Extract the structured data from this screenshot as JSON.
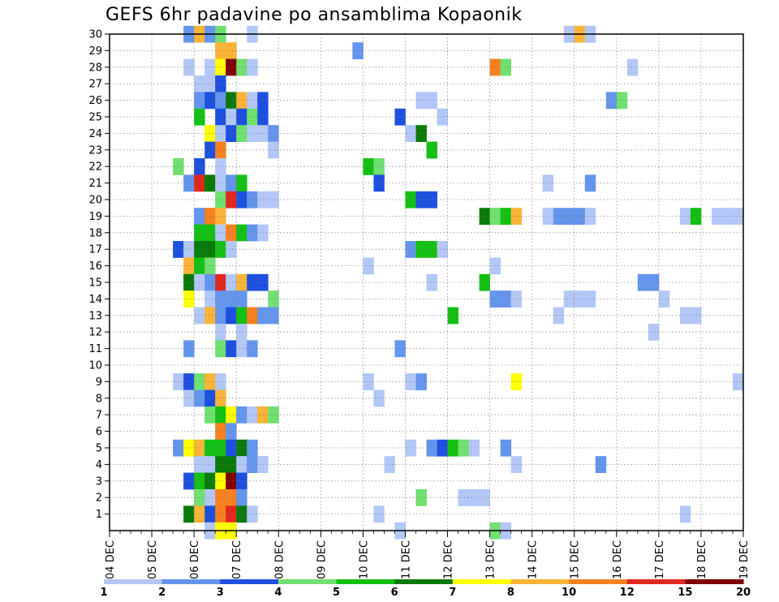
{
  "title": "GEFS 6hr padavine po ansamblima Kopaonik",
  "chart_data": {
    "type": "heatmap",
    "title": "GEFS 6hr padavine po ansamblima Kopaonik",
    "xlabel": "",
    "ylabel": "",
    "x_tick_labels": [
      "04 DEC",
      "05 DEC",
      "06 DEC",
      "07 DEC",
      "08 DEC",
      "09 DEC",
      "10 DEC",
      "11 DEC",
      "12 DEC",
      "13 DEC",
      "14 DEC",
      "15 DEC",
      "16 DEC",
      "17 DEC",
      "18 DEC",
      "19 DEC"
    ],
    "y_tick_labels": [
      "1",
      "2",
      "3",
      "4",
      "5",
      "6",
      "7",
      "8",
      "9",
      "10",
      "11",
      "12",
      "13",
      "14",
      "15",
      "16",
      "17",
      "18",
      "19",
      "20",
      "21",
      "22",
      "23",
      "24",
      "25",
      "26",
      "27",
      "28",
      "29",
      "30"
    ],
    "colorbar": {
      "labels": [
        "1",
        "2",
        "3",
        "4",
        "5",
        "6",
        "7",
        "8",
        "10",
        "12",
        "15",
        "20"
      ],
      "colors": [
        "#b3c7f7",
        "#6495ed",
        "#1e50e0",
        "#70e070",
        "#14c014",
        "#0a7a0a",
        "#ffff00",
        "#fbb437",
        "#f78020",
        "#e0281e",
        "#800000"
      ]
    },
    "grid": true,
    "cells": [
      {
        "m": 30,
        "x": "05 DEC 18Z",
        "c": 2
      },
      {
        "m": 30,
        "x": "06 DEC 00Z",
        "c": 8
      },
      {
        "m": 30,
        "x": "06 DEC 06Z",
        "c": 2
      },
      {
        "m": 30,
        "x": "06 DEC 12Z",
        "c": 4
      },
      {
        "m": 30,
        "x": "07 DEC 06Z",
        "c": 1
      },
      {
        "m": 30,
        "x": "14 DEC 18Z",
        "c": 1
      },
      {
        "m": 30,
        "x": "15 DEC 00Z",
        "c": 8
      },
      {
        "m": 30,
        "x": "15 DEC 06Z",
        "c": 1
      },
      {
        "m": 29,
        "x": "06 DEC 12Z",
        "c": 8
      },
      {
        "m": 29,
        "x": "06 DEC 18Z",
        "c": 8
      },
      {
        "m": 29,
        "x": "09 DEC 18Z",
        "c": 2
      },
      {
        "m": 28,
        "x": "05 DEC 18Z",
        "c": 1
      },
      {
        "m": 28,
        "x": "06 DEC 06Z",
        "c": 1
      },
      {
        "m": 28,
        "x": "06 DEC 12Z",
        "c": 7
      },
      {
        "m": 28,
        "x": "06 DEC 18Z",
        "c": 11
      },
      {
        "m": 28,
        "x": "07 DEC 00Z",
        "c": 4
      },
      {
        "m": 28,
        "x": "07 DEC 06Z",
        "c": 1
      },
      {
        "m": 28,
        "x": "13 DEC 00Z",
        "c": 9
      },
      {
        "m": 28,
        "x": "13 DEC 06Z",
        "c": 4
      },
      {
        "m": 28,
        "x": "16 DEC 06Z",
        "c": 1
      },
      {
        "m": 27,
        "x": "06 DEC 00Z",
        "c": 1
      },
      {
        "m": 27,
        "x": "06 DEC 06Z",
        "c": 1
      },
      {
        "m": 27,
        "x": "06 DEC 12Z",
        "c": 3
      },
      {
        "m": 26,
        "x": "06 DEC 00Z",
        "c": 2
      },
      {
        "m": 26,
        "x": "06 DEC 06Z",
        "c": 3
      },
      {
        "m": 26,
        "x": "06 DEC 12Z",
        "c": 2
      },
      {
        "m": 26,
        "x": "06 DEC 18Z",
        "c": 6
      },
      {
        "m": 26,
        "x": "07 DEC 00Z",
        "c": 8
      },
      {
        "m": 26,
        "x": "07 DEC 06Z",
        "c": 1
      },
      {
        "m": 26,
        "x": "07 DEC 12Z",
        "c": 3
      },
      {
        "m": 26,
        "x": "11 DEC 06Z",
        "c": 1
      },
      {
        "m": 26,
        "x": "11 DEC 12Z",
        "c": 1
      },
      {
        "m": 26,
        "x": "15 DEC 18Z",
        "c": 2
      },
      {
        "m": 26,
        "x": "16 DEC 00Z",
        "c": 4
      },
      {
        "m": 25,
        "x": "06 DEC 00Z",
        "c": 5
      },
      {
        "m": 25,
        "x": "06 DEC 12Z",
        "c": 3
      },
      {
        "m": 25,
        "x": "06 DEC 18Z",
        "c": 1
      },
      {
        "m": 25,
        "x": "07 DEC 00Z",
        "c": 3
      },
      {
        "m": 25,
        "x": "07 DEC 06Z",
        "c": 4
      },
      {
        "m": 25,
        "x": "07 DEC 12Z",
        "c": 3
      },
      {
        "m": 25,
        "x": "10 DEC 18Z",
        "c": 3
      },
      {
        "m": 25,
        "x": "11 DEC 18Z",
        "c": 1
      },
      {
        "m": 24,
        "x": "06 DEC 06Z",
        "c": 7
      },
      {
        "m": 24,
        "x": "06 DEC 12Z",
        "c": 1
      },
      {
        "m": 24,
        "x": "06 DEC 18Z",
        "c": 3
      },
      {
        "m": 24,
        "x": "07 DEC 00Z",
        "c": 4
      },
      {
        "m": 24,
        "x": "07 DEC 06Z",
        "c": 1
      },
      {
        "m": 24,
        "x": "07 DEC 12Z",
        "c": 1
      },
      {
        "m": 24,
        "x": "07 DEC 18Z",
        "c": 2
      },
      {
        "m": 24,
        "x": "11 DEC 00Z",
        "c": 1
      },
      {
        "m": 24,
        "x": "11 DEC 06Z",
        "c": 6
      },
      {
        "m": 23,
        "x": "06 DEC 06Z",
        "c": 3
      },
      {
        "m": 23,
        "x": "06 DEC 12Z",
        "c": 9
      },
      {
        "m": 23,
        "x": "07 DEC 18Z",
        "c": 1
      },
      {
        "m": 23,
        "x": "11 DEC 12Z",
        "c": 5
      },
      {
        "m": 22,
        "x": "05 DEC 12Z",
        "c": 4
      },
      {
        "m": 22,
        "x": "06 DEC 00Z",
        "c": 3
      },
      {
        "m": 22,
        "x": "06 DEC 12Z",
        "c": 1
      },
      {
        "m": 22,
        "x": "10 DEC 00Z",
        "c": 5
      },
      {
        "m": 22,
        "x": "10 DEC 06Z",
        "c": 4
      },
      {
        "m": 21,
        "x": "05 DEC 18Z",
        "c": 2
      },
      {
        "m": 21,
        "x": "06 DEC 00Z",
        "c": 10
      },
      {
        "m": 21,
        "x": "06 DEC 06Z",
        "c": 6
      },
      {
        "m": 21,
        "x": "06 DEC 12Z",
        "c": 1
      },
      {
        "m": 21,
        "x": "06 DEC 18Z",
        "c": 2
      },
      {
        "m": 21,
        "x": "07 DEC 00Z",
        "c": 5
      },
      {
        "m": 21,
        "x": "10 DEC 06Z",
        "c": 3
      },
      {
        "m": 21,
        "x": "14 DEC 06Z",
        "c": 1
      },
      {
        "m": 21,
        "x": "15 DEC 06Z",
        "c": 2
      },
      {
        "m": 20,
        "x": "06 DEC 12Z",
        "c": 4
      },
      {
        "m": 20,
        "x": "06 DEC 18Z",
        "c": 10
      },
      {
        "m": 20,
        "x": "07 DEC 00Z",
        "c": 3
      },
      {
        "m": 20,
        "x": "07 DEC 06Z",
        "c": 2
      },
      {
        "m": 20,
        "x": "07 DEC 12Z",
        "c": 1
      },
      {
        "m": 20,
        "x": "07 DEC 18Z",
        "c": 1
      },
      {
        "m": 20,
        "x": "11 DEC 00Z",
        "c": 5
      },
      {
        "m": 20,
        "x": "11 DEC 06Z",
        "c": 3
      },
      {
        "m": 20,
        "x": "11 DEC 12Z",
        "c": 3
      },
      {
        "m": 19,
        "x": "06 DEC 00Z",
        "c": 2
      },
      {
        "m": 19,
        "x": "06 DEC 06Z",
        "c": 9
      },
      {
        "m": 19,
        "x": "06 DEC 12Z",
        "c": 8
      },
      {
        "m": 19,
        "x": "12 DEC 18Z",
        "c": 6
      },
      {
        "m": 19,
        "x": "13 DEC 00Z",
        "c": 4
      },
      {
        "m": 19,
        "x": "13 DEC 06Z",
        "c": 5
      },
      {
        "m": 19,
        "x": "13 DEC 12Z",
        "c": 8
      },
      {
        "m": 19,
        "x": "14 DEC 06Z",
        "c": 1
      },
      {
        "m": 19,
        "x": "14 DEC 12Z",
        "c": 2
      },
      {
        "m": 19,
        "x": "14 DEC 18Z",
        "c": 2
      },
      {
        "m": 19,
        "x": "15 DEC 00Z",
        "c": 2
      },
      {
        "m": 19,
        "x": "15 DEC 06Z",
        "c": 1
      },
      {
        "m": 19,
        "x": "17 DEC 12Z",
        "c": 1
      },
      {
        "m": 19,
        "x": "17 DEC 18Z",
        "c": 5
      },
      {
        "m": 19,
        "x": "18 DEC 06Z",
        "c": 1
      },
      {
        "m": 19,
        "x": "18 DEC 12Z",
        "c": 1
      },
      {
        "m": 19,
        "x": "18 DEC 18Z",
        "c": 1
      },
      {
        "m": 18,
        "x": "06 DEC 00Z",
        "c": 5
      },
      {
        "m": 18,
        "x": "06 DEC 06Z",
        "c": 5
      },
      {
        "m": 18,
        "x": "06 DEC 12Z",
        "c": 1
      },
      {
        "m": 18,
        "x": "06 DEC 18Z",
        "c": 9
      },
      {
        "m": 18,
        "x": "07 DEC 00Z",
        "c": 5
      },
      {
        "m": 18,
        "x": "07 DEC 06Z",
        "c": 2
      },
      {
        "m": 18,
        "x": "07 DEC 12Z",
        "c": 1
      },
      {
        "m": 17,
        "x": "05 DEC 12Z",
        "c": 3
      },
      {
        "m": 17,
        "x": "05 DEC 18Z",
        "c": 1
      },
      {
        "m": 17,
        "x": "06 DEC 00Z",
        "c": 6
      },
      {
        "m": 17,
        "x": "06 DEC 06Z",
        "c": 6
      },
      {
        "m": 17,
        "x": "06 DEC 12Z",
        "c": 5
      },
      {
        "m": 17,
        "x": "06 DEC 18Z",
        "c": 1
      },
      {
        "m": 17,
        "x": "11 DEC 00Z",
        "c": 2
      },
      {
        "m": 17,
        "x": "11 DEC 06Z",
        "c": 5
      },
      {
        "m": 17,
        "x": "11 DEC 12Z",
        "c": 5
      },
      {
        "m": 17,
        "x": "11 DEC 18Z",
        "c": 1
      },
      {
        "m": 16,
        "x": "05 DEC 18Z",
        "c": 8
      },
      {
        "m": 16,
        "x": "06 DEC 00Z",
        "c": 5
      },
      {
        "m": 16,
        "x": "06 DEC 06Z",
        "c": 4
      },
      {
        "m": 16,
        "x": "10 DEC 00Z",
        "c": 1
      },
      {
        "m": 16,
        "x": "13 DEC 00Z",
        "c": 1
      },
      {
        "m": 15,
        "x": "05 DEC 18Z",
        "c": 6
      },
      {
        "m": 15,
        "x": "06 DEC 00Z",
        "c": 1
      },
      {
        "m": 15,
        "x": "06 DEC 06Z",
        "c": 2
      },
      {
        "m": 15,
        "x": "06 DEC 12Z",
        "c": 10
      },
      {
        "m": 15,
        "x": "06 DEC 18Z",
        "c": 1
      },
      {
        "m": 15,
        "x": "07 DEC 00Z",
        "c": 8
      },
      {
        "m": 15,
        "x": "07 DEC 06Z",
        "c": 3
      },
      {
        "m": 15,
        "x": "07 DEC 12Z",
        "c": 3
      },
      {
        "m": 15,
        "x": "11 DEC 12Z",
        "c": 1
      },
      {
        "m": 15,
        "x": "12 DEC 18Z",
        "c": 5
      },
      {
        "m": 15,
        "x": "16 DEC 12Z",
        "c": 2
      },
      {
        "m": 15,
        "x": "16 DEC 18Z",
        "c": 2
      },
      {
        "m": 14,
        "x": "05 DEC 18Z",
        "c": 7
      },
      {
        "m": 14,
        "x": "06 DEC 06Z",
        "c": 1
      },
      {
        "m": 14,
        "x": "06 DEC 12Z",
        "c": 2
      },
      {
        "m": 14,
        "x": "06 DEC 18Z",
        "c": 2
      },
      {
        "m": 14,
        "x": "07 DEC 00Z",
        "c": 2
      },
      {
        "m": 14,
        "x": "07 DEC 18Z",
        "c": 4
      },
      {
        "m": 14,
        "x": "13 DEC 00Z",
        "c": 2
      },
      {
        "m": 14,
        "x": "13 DEC 06Z",
        "c": 2
      },
      {
        "m": 14,
        "x": "13 DEC 12Z",
        "c": 1
      },
      {
        "m": 14,
        "x": "14 DEC 18Z",
        "c": 1
      },
      {
        "m": 14,
        "x": "15 DEC 00Z",
        "c": 1
      },
      {
        "m": 14,
        "x": "15 DEC 06Z",
        "c": 1
      },
      {
        "m": 14,
        "x": "17 DEC 00Z",
        "c": 1
      },
      {
        "m": 13,
        "x": "06 DEC 00Z",
        "c": 1
      },
      {
        "m": 13,
        "x": "06 DEC 06Z",
        "c": 8
      },
      {
        "m": 13,
        "x": "06 DEC 12Z",
        "c": 2
      },
      {
        "m": 13,
        "x": "06 DEC 18Z",
        "c": 3
      },
      {
        "m": 13,
        "x": "07 DEC 00Z",
        "c": 5
      },
      {
        "m": 13,
        "x": "07 DEC 06Z",
        "c": 9
      },
      {
        "m": 13,
        "x": "07 DEC 12Z",
        "c": 2
      },
      {
        "m": 13,
        "x": "07 DEC 18Z",
        "c": 2
      },
      {
        "m": 13,
        "x": "12 DEC 00Z",
        "c": 5
      },
      {
        "m": 13,
        "x": "14 DEC 12Z",
        "c": 1
      },
      {
        "m": 13,
        "x": "17 DEC 12Z",
        "c": 1
      },
      {
        "m": 13,
        "x": "17 DEC 18Z",
        "c": 1
      },
      {
        "m": 12,
        "x": "06 DEC 12Z",
        "c": 1
      },
      {
        "m": 12,
        "x": "07 DEC 00Z",
        "c": 1
      },
      {
        "m": 12,
        "x": "16 DEC 18Z",
        "c": 1
      },
      {
        "m": 11,
        "x": "05 DEC 18Z",
        "c": 2
      },
      {
        "m": 11,
        "x": "06 DEC 12Z",
        "c": 4
      },
      {
        "m": 11,
        "x": "06 DEC 18Z",
        "c": 3
      },
      {
        "m": 11,
        "x": "07 DEC 00Z",
        "c": 1
      },
      {
        "m": 11,
        "x": "07 DEC 06Z",
        "c": 2
      },
      {
        "m": 11,
        "x": "10 DEC 18Z",
        "c": 2
      },
      {
        "m": 9,
        "x": "05 DEC 12Z",
        "c": 1
      },
      {
        "m": 9,
        "x": "05 DEC 18Z",
        "c": 3
      },
      {
        "m": 9,
        "x": "06 DEC 00Z",
        "c": 4
      },
      {
        "m": 9,
        "x": "06 DEC 06Z",
        "c": 8
      },
      {
        "m": 9,
        "x": "06 DEC 12Z",
        "c": 1
      },
      {
        "m": 9,
        "x": "10 DEC 00Z",
        "c": 1
      },
      {
        "m": 9,
        "x": "11 DEC 00Z",
        "c": 1
      },
      {
        "m": 9,
        "x": "11 DEC 06Z",
        "c": 2
      },
      {
        "m": 9,
        "x": "13 DEC 12Z",
        "c": 7
      },
      {
        "m": 9,
        "x": "18 DEC 18Z",
        "c": 1
      },
      {
        "m": 8,
        "x": "05 DEC 18Z",
        "c": 1
      },
      {
        "m": 8,
        "x": "06 DEC 00Z",
        "c": 2
      },
      {
        "m": 8,
        "x": "06 DEC 06Z",
        "c": 3
      },
      {
        "m": 8,
        "x": "06 DEC 12Z",
        "c": 8
      },
      {
        "m": 8,
        "x": "10 DEC 06Z",
        "c": 1
      },
      {
        "m": 7,
        "x": "06 DEC 06Z",
        "c": 4
      },
      {
        "m": 7,
        "x": "06 DEC 12Z",
        "c": 5
      },
      {
        "m": 7,
        "x": "06 DEC 18Z",
        "c": 7
      },
      {
        "m": 7,
        "x": "07 DEC 00Z",
        "c": 2
      },
      {
        "m": 7,
        "x": "07 DEC 06Z",
        "c": 1
      },
      {
        "m": 7,
        "x": "07 DEC 12Z",
        "c": 8
      },
      {
        "m": 7,
        "x": "07 DEC 18Z",
        "c": 4
      },
      {
        "m": 6,
        "x": "06 DEC 12Z",
        "c": 9
      },
      {
        "m": 6,
        "x": "06 DEC 18Z",
        "c": 2
      },
      {
        "m": 5,
        "x": "05 DEC 12Z",
        "c": 2
      },
      {
        "m": 5,
        "x": "05 DEC 18Z",
        "c": 7
      },
      {
        "m": 5,
        "x": "06 DEC 00Z",
        "c": 8
      },
      {
        "m": 5,
        "x": "06 DEC 06Z",
        "c": 5
      },
      {
        "m": 5,
        "x": "06 DEC 12Z",
        "c": 5
      },
      {
        "m": 5,
        "x": "06 DEC 18Z",
        "c": 3
      },
      {
        "m": 5,
        "x": "07 DEC 00Z",
        "c": 6
      },
      {
        "m": 5,
        "x": "07 DEC 06Z",
        "c": 2
      },
      {
        "m": 5,
        "x": "11 DEC 00Z",
        "c": 1
      },
      {
        "m": 5,
        "x": "11 DEC 12Z",
        "c": 2
      },
      {
        "m": 5,
        "x": "11 DEC 18Z",
        "c": 3
      },
      {
        "m": 5,
        "x": "12 DEC 00Z",
        "c": 5
      },
      {
        "m": 5,
        "x": "12 DEC 06Z",
        "c": 4
      },
      {
        "m": 5,
        "x": "12 DEC 12Z",
        "c": 1
      },
      {
        "m": 5,
        "x": "13 DEC 06Z",
        "c": 2
      },
      {
        "m": 4,
        "x": "06 DEC 00Z",
        "c": 1
      },
      {
        "m": 4,
        "x": "06 DEC 06Z",
        "c": 1
      },
      {
        "m": 4,
        "x": "06 DEC 12Z",
        "c": 6
      },
      {
        "m": 4,
        "x": "06 DEC 18Z",
        "c": 6
      },
      {
        "m": 4,
        "x": "07 DEC 00Z",
        "c": 1
      },
      {
        "m": 4,
        "x": "07 DEC 06Z",
        "c": 2
      },
      {
        "m": 4,
        "x": "07 DEC 12Z",
        "c": 1
      },
      {
        "m": 4,
        "x": "10 DEC 12Z",
        "c": 1
      },
      {
        "m": 4,
        "x": "13 DEC 12Z",
        "c": 1
      },
      {
        "m": 4,
        "x": "15 DEC 12Z",
        "c": 2
      },
      {
        "m": 3,
        "x": "05 DEC 18Z",
        "c": 3
      },
      {
        "m": 3,
        "x": "06 DEC 00Z",
        "c": 5
      },
      {
        "m": 3,
        "x": "06 DEC 06Z",
        "c": 6
      },
      {
        "m": 3,
        "x": "06 DEC 12Z",
        "c": 7
      },
      {
        "m": 3,
        "x": "06 DEC 18Z",
        "c": 11
      },
      {
        "m": 3,
        "x": "07 DEC 00Z",
        "c": 3
      },
      {
        "m": 2,
        "x": "06 DEC 00Z",
        "c": 4
      },
      {
        "m": 2,
        "x": "06 DEC 06Z",
        "c": 1
      },
      {
        "m": 2,
        "x": "06 DEC 12Z",
        "c": 9
      },
      {
        "m": 2,
        "x": "06 DEC 18Z",
        "c": 9
      },
      {
        "m": 2,
        "x": "07 DEC 00Z",
        "c": 2
      },
      {
        "m": 2,
        "x": "11 DEC 06Z",
        "c": 4
      },
      {
        "m": 2,
        "x": "12 DEC 06Z",
        "c": 1
      },
      {
        "m": 2,
        "x": "12 DEC 12Z",
        "c": 1
      },
      {
        "m": 2,
        "x": "12 DEC 18Z",
        "c": 1
      },
      {
        "m": 1,
        "x": "05 DEC 18Z",
        "c": 6
      },
      {
        "m": 1,
        "x": "06 DEC 00Z",
        "c": 8
      },
      {
        "m": 1,
        "x": "06 DEC 06Z",
        "c": 3
      },
      {
        "m": 1,
        "x": "06 DEC 12Z",
        "c": 9
      },
      {
        "m": 1,
        "x": "06 DEC 18Z",
        "c": 10
      },
      {
        "m": 1,
        "x": "07 DEC 00Z",
        "c": 6
      },
      {
        "m": 1,
        "x": "07 DEC 06Z",
        "c": 1
      },
      {
        "m": 1,
        "x": "10 DEC 06Z",
        "c": 1
      },
      {
        "m": 1,
        "x": "17 DEC 12Z",
        "c": 1
      },
      {
        "m": 0,
        "x": "06 DEC 06Z",
        "c": 1
      },
      {
        "m": 0,
        "x": "06 DEC 12Z",
        "c": 7
      },
      {
        "m": 0,
        "x": "06 DEC 18Z",
        "c": 7
      },
      {
        "m": 0,
        "x": "10 DEC 18Z",
        "c": 1
      },
      {
        "m": 0,
        "x": "13 DEC 00Z",
        "c": 4
      },
      {
        "m": 0,
        "x": "13 DEC 06Z",
        "c": 1
      }
    ]
  }
}
